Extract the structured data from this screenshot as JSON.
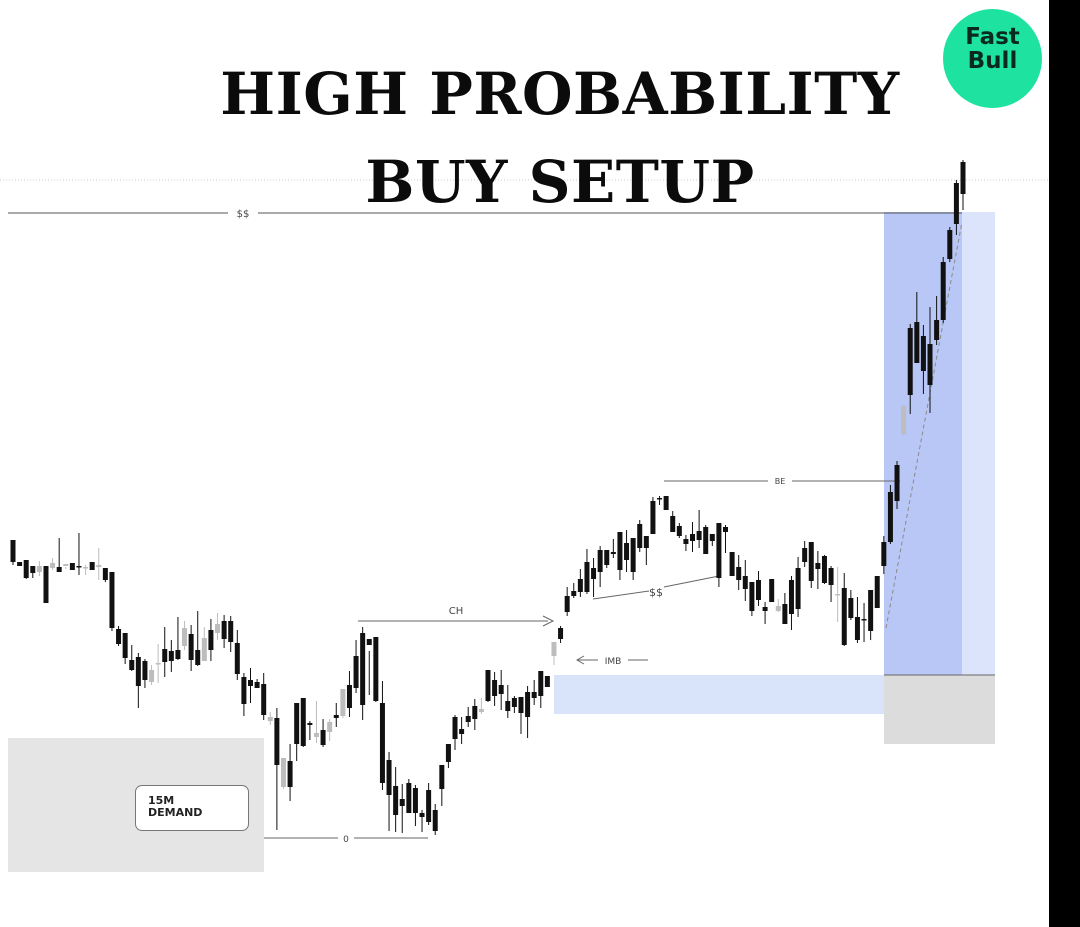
{
  "title_line1": "HIGH PROBABILITY",
  "title_line2": "BUY SETUP",
  "logo": {
    "line1": "Fast",
    "line2": "Bull",
    "color": "#1ee3a0"
  },
  "colors": {
    "bull_candle": "#bdbdbd",
    "bear_candle": "#111111",
    "demand_zone": "#e5e5e5",
    "imbalance_zone": "#d9e4fb",
    "target_zone": "#b9c7f6",
    "target_zone_light": "#dbe4fb",
    "stop_zone": "#dcdcdc"
  },
  "chart_data": {
    "type": "candlestick",
    "annotations": [
      {
        "name": "liquidity-top",
        "label": "$$"
      },
      {
        "name": "change-of-character",
        "label": "CH"
      },
      {
        "name": "low-marker",
        "label": "0"
      },
      {
        "name": "imbalance",
        "label": "IMB"
      },
      {
        "name": "liquidity-mid",
        "label": "$$"
      },
      {
        "name": "breakeven",
        "label": "BE"
      }
    ],
    "zones": [
      {
        "name": "demand-zone",
        "line1": "15M",
        "line2": "DEMAND"
      }
    ],
    "candles": [
      [
        545,
        540,
        562,
        565
      ],
      [
        550,
        562,
        566,
        550
      ],
      [
        562,
        560,
        578,
        579
      ],
      [
        566,
        566,
        573,
        578
      ],
      [
        561,
        572,
        566,
        576
      ],
      [
        570,
        566,
        603,
        572
      ],
      [
        558,
        568,
        563,
        570
      ],
      [
        538,
        567,
        572,
        567
      ],
      [
        567,
        566,
        564,
        569
      ],
      [
        564,
        563,
        570,
        568
      ],
      [
        533,
        566,
        566,
        575
      ],
      [
        565,
        568,
        567,
        575
      ],
      [
        564,
        562,
        570,
        570
      ],
      [
        548,
        567,
        565,
        580
      ],
      [
        568,
        568,
        580,
        582
      ],
      [
        583,
        572,
        628,
        631
      ],
      [
        626,
        629,
        644,
        646
      ],
      [
        633,
        633,
        658,
        664
      ],
      [
        645,
        660,
        670,
        671
      ],
      [
        653,
        657,
        686,
        708
      ],
      [
        659,
        661,
        680,
        688
      ],
      [
        665,
        682,
        670,
        685
      ],
      [
        644,
        664,
        663,
        683
      ],
      [
        627,
        649,
        662,
        677
      ],
      [
        640,
        651,
        661,
        672
      ],
      [
        617,
        650,
        659,
        660
      ],
      [
        621,
        646,
        628,
        650
      ],
      [
        625,
        634,
        660,
        671
      ],
      [
        611,
        650,
        665,
        666
      ],
      [
        627,
        661,
        638,
        650
      ],
      [
        619,
        630,
        650,
        661
      ],
      [
        613,
        633,
        624,
        640
      ],
      [
        615,
        621,
        639,
        648
      ],
      [
        616,
        621,
        642,
        652
      ],
      [
        630,
        643,
        674,
        680
      ],
      [
        673,
        677,
        704,
        716
      ],
      [
        668,
        680,
        686,
        703
      ],
      [
        679,
        682,
        688,
        688
      ],
      [
        673,
        684,
        715,
        720
      ],
      [
        712,
        721,
        717,
        725
      ],
      [
        708,
        718,
        765,
        830
      ],
      [
        762,
        787,
        758,
        789
      ],
      [
        744,
        761,
        787,
        801
      ],
      [
        707,
        703,
        744,
        761
      ],
      [
        715,
        698,
        746,
        747
      ],
      [
        721,
        723,
        725,
        740
      ],
      [
        701,
        737,
        733,
        743
      ],
      [
        719,
        730,
        745,
        747
      ],
      [
        719,
        732,
        722,
        741
      ],
      [
        703,
        715,
        718,
        727
      ],
      [
        699,
        716,
        689,
        718
      ],
      [
        671,
        685,
        708,
        717
      ],
      [
        640,
        656,
        688,
        693
      ],
      [
        627,
        633,
        705,
        720
      ],
      [
        651,
        639,
        645,
        695
      ],
      [
        661,
        637,
        701,
        702
      ],
      [
        681,
        703,
        783,
        790
      ],
      [
        752,
        760,
        795,
        831
      ],
      [
        767,
        786,
        815,
        832
      ],
      [
        784,
        799,
        806,
        833
      ],
      [
        779,
        783,
        813,
        810
      ],
      [
        785,
        788,
        813,
        826
      ],
      [
        810,
        813,
        817,
        832
      ],
      [
        783,
        790,
        822,
        825
      ],
      [
        804,
        810,
        831,
        835
      ],
      [
        766,
        765,
        789,
        806
      ],
      [
        749,
        744,
        762,
        768
      ],
      [
        715,
        717,
        739,
        750
      ],
      [
        717,
        729,
        734,
        744
      ],
      [
        707,
        716,
        722,
        727
      ],
      [
        699,
        706,
        719,
        730
      ],
      [
        698,
        712,
        709,
        714
      ],
      [
        687,
        670,
        701,
        702
      ],
      [
        672,
        680,
        696,
        706
      ],
      [
        670,
        685,
        694,
        710
      ],
      [
        685,
        701,
        711,
        718
      ],
      [
        696,
        698,
        707,
        713
      ],
      [
        698,
        697,
        713,
        734
      ],
      [
        686,
        692,
        717,
        738
      ],
      [
        680,
        692,
        698,
        705
      ],
      [
        672,
        671,
        696,
        708
      ],
      [
        676,
        676,
        687,
        687
      ],
      [
        655,
        656,
        642,
        665
      ],
      [
        626,
        628,
        639,
        643
      ],
      [
        587,
        596,
        612,
        616
      ],
      [
        583,
        591,
        596,
        598
      ],
      [
        569,
        579,
        592,
        597
      ],
      [
        549,
        562,
        592,
        594
      ],
      [
        558,
        568,
        579,
        597
      ],
      [
        546,
        550,
        572,
        587
      ],
      [
        552,
        550,
        565,
        568
      ],
      [
        539,
        552,
        554,
        558
      ],
      [
        540,
        532,
        570,
        580
      ],
      [
        530,
        543,
        560,
        572
      ],
      [
        538,
        538,
        572,
        580
      ],
      [
        520,
        524,
        548,
        552
      ],
      [
        536,
        536,
        548,
        565
      ],
      [
        497,
        501,
        534,
        534
      ],
      [
        496,
        498,
        498,
        505
      ],
      [
        498,
        496,
        510,
        508
      ],
      [
        511,
        516,
        532,
        530
      ],
      [
        523,
        526,
        536,
        538
      ],
      [
        535,
        539,
        544,
        551
      ],
      [
        522,
        534,
        541,
        552
      ],
      [
        510,
        531,
        540,
        548
      ],
      [
        525,
        527,
        554,
        548
      ],
      [
        538,
        534,
        541,
        546
      ],
      [
        525,
        523,
        578,
        587
      ],
      [
        525,
        527,
        532,
        553
      ],
      [
        553,
        552,
        576,
        576
      ],
      [
        555,
        567,
        580,
        590
      ],
      [
        560,
        576,
        589,
        601
      ],
      [
        582,
        582,
        611,
        616
      ],
      [
        571,
        580,
        600,
        606
      ],
      [
        602,
        607,
        611,
        624
      ],
      [
        606,
        579,
        602,
        606
      ],
      [
        599,
        611,
        606,
        612
      ],
      [
        593,
        604,
        624,
        623
      ],
      [
        576,
        580,
        614,
        630
      ],
      [
        557,
        568,
        609,
        617
      ],
      [
        541,
        548,
        562,
        567
      ],
      [
        542,
        542,
        581,
        588
      ],
      [
        551,
        563,
        569,
        589
      ],
      [
        555,
        556,
        583,
        584
      ],
      [
        566,
        568,
        585,
        602
      ],
      [
        567,
        595,
        594,
        622
      ],
      [
        573,
        588,
        645,
        646
      ],
      [
        590,
        598,
        618,
        620
      ],
      [
        597,
        617,
        640,
        643
      ],
      [
        603,
        619,
        620,
        642
      ],
      [
        590,
        590,
        631,
        640
      ],
      [
        584,
        576,
        608,
        606
      ],
      [
        536,
        542,
        566,
        574
      ],
      [
        485,
        492,
        542,
        544
      ],
      [
        461,
        465,
        501,
        509
      ],
      [
        405,
        434,
        406,
        436
      ],
      [
        324,
        328,
        395,
        414
      ],
      [
        292,
        322,
        363,
        351
      ],
      [
        325,
        336,
        371,
        394
      ],
      [
        307,
        344,
        385,
        413
      ],
      [
        296,
        320,
        340,
        345
      ],
      [
        257,
        262,
        320,
        323
      ],
      [
        227,
        230,
        259,
        262
      ],
      [
        180,
        183,
        224,
        235
      ],
      [
        160,
        162,
        194,
        210
      ]
    ]
  }
}
